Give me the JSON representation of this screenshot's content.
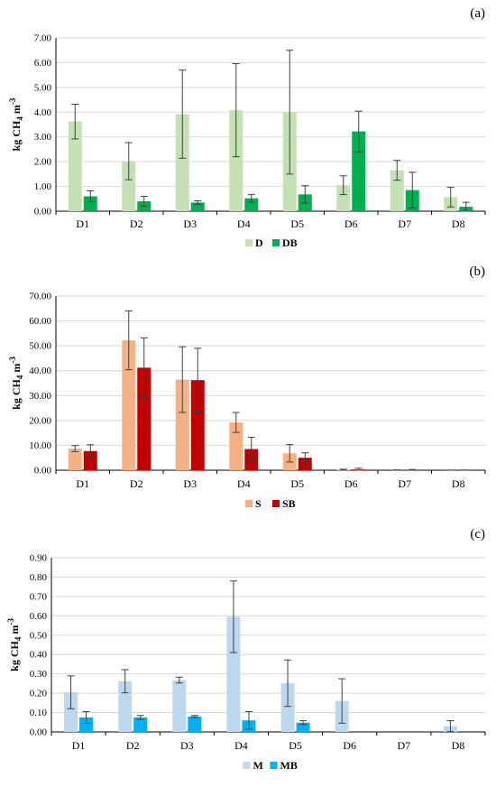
{
  "chart_data": [
    {
      "type": "bar",
      "panel_label": "(a)",
      "ylabel_main": "kg CH",
      "ylabel_sub": "4",
      "ylabel_rest": " m",
      "ylabel_sup": "-3",
      "categories": [
        "D1",
        "D2",
        "D3",
        "D4",
        "D5",
        "D6",
        "D7",
        "D8"
      ],
      "ylim": [
        0,
        7
      ],
      "yticks": [
        0,
        1,
        2,
        3,
        4,
        5,
        6,
        7
      ],
      "ytick_labels": [
        "0.00",
        "1.00",
        "2.00",
        "3.00",
        "4.00",
        "5.00",
        "6.00",
        "7.00"
      ],
      "legend_position": "bottom",
      "series": [
        {
          "name": "D",
          "color": "#c5e0b4",
          "values": [
            3.62,
            2.02,
            3.92,
            4.08,
            4.0,
            1.05,
            1.65,
            0.57
          ],
          "err": [
            0.7,
            0.75,
            1.78,
            1.88,
            2.5,
            0.38,
            0.4,
            0.4
          ]
        },
        {
          "name": "DB",
          "color": "#00b050",
          "values": [
            0.6,
            0.4,
            0.35,
            0.52,
            0.68,
            3.22,
            0.85,
            0.18
          ],
          "err": [
            0.22,
            0.2,
            0.07,
            0.15,
            0.35,
            0.82,
            0.72,
            0.18
          ]
        }
      ]
    },
    {
      "type": "bar",
      "panel_label": "(b)",
      "ylabel_main": "kg CH",
      "ylabel_sub": "4",
      "ylabel_rest": " m",
      "ylabel_sup": "-3",
      "categories": [
        "D1",
        "D2",
        "D3",
        "D4",
        "D5",
        "D6",
        "D7",
        "D8"
      ],
      "ylim": [
        0,
        70
      ],
      "yticks": [
        0,
        10,
        20,
        30,
        40,
        50,
        60,
        70
      ],
      "ytick_labels": [
        "0.00",
        "10.00",
        "20.00",
        "30.00",
        "40.00",
        "50.00",
        "60.00",
        "70.00"
      ],
      "legend_position": "bottom",
      "series": [
        {
          "name": "S",
          "color": "#f4b183",
          "values": [
            8.7,
            52.2,
            36.4,
            19.2,
            6.8,
            0.2,
            0.05,
            0.02
          ],
          "err": [
            1.2,
            11.8,
            13.2,
            4.0,
            3.5,
            0.2,
            0.1,
            0.05
          ]
        },
        {
          "name": "SB",
          "color": "#c00000",
          "values": [
            7.7,
            41.2,
            36.2,
            8.5,
            5.0,
            0.3,
            0.1,
            0.05
          ],
          "err": [
            2.5,
            12.0,
            12.8,
            4.7,
            2.0,
            0.5,
            0.2,
            0.05
          ]
        }
      ]
    },
    {
      "type": "bar",
      "panel_label": "(c)",
      "ylabel_main": "kg CH",
      "ylabel_sub": "4",
      "ylabel_rest": " m",
      "ylabel_sup": "-3",
      "categories": [
        "D1",
        "D2",
        "D3",
        "D4",
        "D5",
        "D6",
        "D7",
        "D8"
      ],
      "ylim": [
        0,
        0.9
      ],
      "yticks": [
        0,
        0.1,
        0.2,
        0.3,
        0.4,
        0.5,
        0.6,
        0.7,
        0.8,
        0.9
      ],
      "ytick_labels": [
        "0.00",
        "0.10",
        "0.20",
        "0.30",
        "0.40",
        "0.50",
        "0.60",
        "0.70",
        "0.80",
        "0.90"
      ],
      "legend_position": "bottom",
      "series": [
        {
          "name": "M",
          "color": "#bdd7ee",
          "values": [
            0.205,
            0.262,
            0.268,
            0.595,
            0.252,
            0.16,
            0.0,
            0.03
          ],
          "err": [
            0.085,
            0.06,
            0.015,
            0.185,
            0.12,
            0.115,
            0.0,
            0.028
          ]
        },
        {
          "name": "MB",
          "color": "#00b0f0",
          "values": [
            0.075,
            0.075,
            0.08,
            0.06,
            0.048,
            0.0,
            0.0,
            0.0
          ],
          "err": [
            0.03,
            0.01,
            0.005,
            0.045,
            0.01,
            0.0,
            0.0,
            0.0
          ]
        }
      ]
    }
  ]
}
